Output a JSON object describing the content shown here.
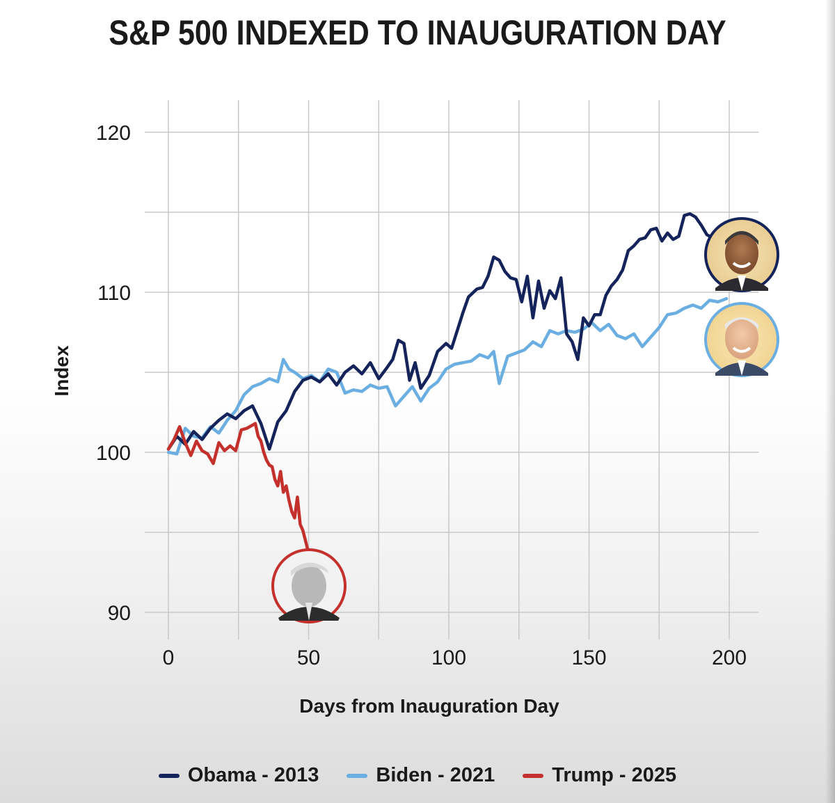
{
  "chart_data": {
    "type": "line",
    "title": "S&P 500 INDEXED TO INAUGURATION DAY",
    "xlabel": "Days from Inauguration Day",
    "ylabel": "Index",
    "xlim": [
      0,
      207
    ],
    "ylim": [
      89,
      122
    ],
    "x_ticks": [
      0,
      50,
      100,
      150,
      200
    ],
    "y_ticks": [
      90,
      100,
      110,
      120
    ],
    "grid": true,
    "legend_position": "bottom",
    "series": [
      {
        "name": "Obama - 2013",
        "color": "#14245a",
        "x": [
          0,
          3,
          6,
          9,
          12,
          15,
          18,
          21,
          24,
          27,
          30,
          33,
          36,
          39,
          42,
          45,
          48,
          51,
          54,
          57,
          60,
          63,
          66,
          69,
          72,
          75,
          78,
          80,
          82,
          84,
          86,
          88,
          90,
          93,
          96,
          99,
          101,
          103,
          105,
          107,
          110,
          112,
          114,
          116,
          118,
          120,
          122,
          124,
          126,
          128,
          130,
          132,
          134,
          136,
          138,
          140,
          142,
          144,
          146,
          148,
          150,
          152,
          154,
          156,
          158,
          160,
          162,
          164,
          166,
          168,
          170,
          172,
          174,
          176,
          178,
          180,
          182,
          184,
          186,
          188,
          190,
          192,
          194,
          196
        ],
        "values": [
          100.2,
          101.0,
          100.5,
          101.3,
          100.8,
          101.5,
          102.0,
          102.4,
          102.1,
          102.6,
          102.9,
          101.8,
          100.2,
          101.9,
          102.6,
          103.8,
          104.5,
          104.7,
          104.4,
          104.9,
          104.2,
          105.0,
          105.4,
          104.9,
          105.6,
          104.6,
          105.3,
          105.8,
          107.0,
          106.8,
          104.5,
          105.6,
          104.0,
          104.8,
          106.3,
          106.8,
          106.5,
          107.6,
          108.7,
          109.7,
          110.2,
          110.3,
          111.0,
          112.2,
          112.0,
          111.3,
          110.9,
          110.8,
          109.4,
          111.0,
          108.4,
          110.7,
          109.0,
          110.1,
          109.6,
          110.9,
          107.4,
          106.9,
          105.8,
          108.4,
          107.9,
          108.6,
          108.6,
          109.8,
          110.4,
          110.8,
          111.4,
          112.6,
          112.9,
          113.3,
          113.4,
          113.9,
          114.0,
          113.2,
          113.7,
          113.3,
          113.5,
          114.8,
          114.9,
          114.7,
          114.2,
          113.6,
          113.4,
          113.6
        ]
      },
      {
        "name": "Biden - 2021",
        "color": "#6aaee2",
        "x": [
          0,
          3,
          6,
          9,
          12,
          15,
          18,
          21,
          24,
          27,
          30,
          33,
          36,
          39,
          41,
          43,
          45,
          48,
          51,
          54,
          57,
          60,
          63,
          66,
          69,
          72,
          75,
          78,
          81,
          84,
          87,
          90,
          93,
          96,
          99,
          102,
          105,
          108,
          111,
          114,
          116,
          118,
          121,
          124,
          127,
          130,
          133,
          136,
          139,
          142,
          145,
          148,
          151,
          154,
          157,
          160,
          163,
          166,
          169,
          172,
          175,
          178,
          181,
          184,
          187,
          190,
          193,
          196,
          199
        ],
        "values": [
          100.0,
          99.9,
          101.5,
          101.0,
          100.9,
          101.6,
          101.2,
          102.0,
          102.6,
          103.6,
          104.1,
          104.3,
          104.6,
          104.4,
          105.8,
          105.2,
          105.0,
          104.6,
          104.8,
          104.4,
          105.2,
          105.0,
          103.7,
          103.9,
          103.8,
          104.2,
          104.0,
          104.1,
          102.9,
          103.5,
          104.1,
          103.2,
          104.0,
          104.4,
          105.2,
          105.5,
          105.6,
          105.7,
          106.1,
          105.9,
          106.3,
          104.3,
          106.0,
          106.2,
          106.4,
          106.9,
          106.6,
          107.6,
          107.4,
          107.6,
          107.5,
          107.7,
          108.1,
          107.6,
          108.0,
          107.3,
          107.1,
          107.4,
          106.6,
          107.2,
          107.8,
          108.6,
          108.7,
          109.0,
          109.2,
          109.0,
          109.5,
          109.4,
          109.6
        ]
      },
      {
        "name": "Trump - 2025",
        "color": "#c4302b",
        "x": [
          0,
          2,
          4,
          6,
          8,
          10,
          12,
          14,
          16,
          18,
          20,
          22,
          24,
          26,
          28,
          30,
          31,
          32,
          33,
          34,
          35,
          36,
          37,
          38,
          39,
          40,
          41,
          42,
          43,
          44,
          45,
          46,
          47,
          48,
          49,
          50
        ],
        "values": [
          100.2,
          100.8,
          101.6,
          100.6,
          99.8,
          100.7,
          100.1,
          99.9,
          99.3,
          100.6,
          100.1,
          100.4,
          100.1,
          101.4,
          101.5,
          101.7,
          101.8,
          101.0,
          100.7,
          100.0,
          99.5,
          99.2,
          99.1,
          98.3,
          97.9,
          98.8,
          97.5,
          97.9,
          97.0,
          96.3,
          95.9,
          97.2,
          95.5,
          95.1,
          94.4,
          93.7
        ]
      }
    ]
  }
}
